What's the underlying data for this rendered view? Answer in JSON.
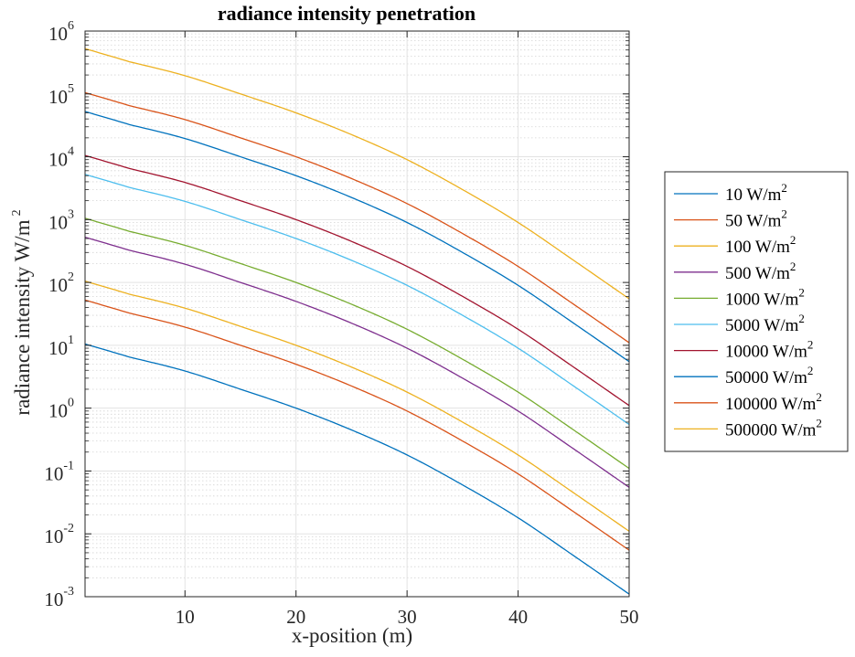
{
  "chart_data": {
    "type": "line",
    "title": "radiance intensity penetration",
    "xlabel": "x-position (m)",
    "ylabel": "radiance intensity W/m",
    "ylabel_sup": "2",
    "xlim": [
      1,
      50
    ],
    "ylim": [
      0.001,
      1000000
    ],
    "yscale": "log",
    "grid": true,
    "minor_grid": true,
    "legend_position": "outside-right",
    "x_ticks": [
      10,
      20,
      30,
      40,
      50
    ],
    "y_ticks": [
      {
        "value": 0.001,
        "base": "10",
        "exp": "-3"
      },
      {
        "value": 0.01,
        "base": "10",
        "exp": "-2"
      },
      {
        "value": 0.1,
        "base": "10",
        "exp": "-1"
      },
      {
        "value": 1,
        "base": "10",
        "exp": "0"
      },
      {
        "value": 10,
        "base": "10",
        "exp": "1"
      },
      {
        "value": 100,
        "base": "10",
        "exp": "2"
      },
      {
        "value": 1000,
        "base": "10",
        "exp": "3"
      },
      {
        "value": 10000,
        "base": "10",
        "exp": "4"
      },
      {
        "value": 100000,
        "base": "10",
        "exp": "5"
      },
      {
        "value": 1000000,
        "base": "10",
        "exp": "6"
      }
    ],
    "x": [
      1,
      5,
      10,
      15,
      20,
      25,
      30,
      35,
      40,
      45,
      50
    ],
    "series": [
      {
        "name": "10 W/m",
        "name_sup": "2",
        "color": "#0072BD",
        "values": [
          10.5,
          6.5,
          3.9,
          2.0,
          1.0,
          0.45,
          0.18,
          0.06,
          0.018,
          0.0045,
          0.0011
        ]
      },
      {
        "name": "50 W/m",
        "name_sup": "2",
        "color": "#D95319",
        "values": [
          52.5,
          32.5,
          19.5,
          10.0,
          5.0,
          2.25,
          0.9,
          0.3,
          0.09,
          0.0225,
          0.0055
        ]
      },
      {
        "name": "100 W/m",
        "name_sup": "2",
        "color": "#EDB120",
        "values": [
          105,
          65,
          39,
          20,
          10,
          4.5,
          1.8,
          0.6,
          0.18,
          0.045,
          0.011
        ]
      },
      {
        "name": "500 W/m",
        "name_sup": "2",
        "color": "#7E2F8E",
        "values": [
          525,
          325,
          195,
          100,
          50,
          22.5,
          9,
          3,
          0.9,
          0.225,
          0.055
        ]
      },
      {
        "name": "1000 W/m",
        "name_sup": "2",
        "color": "#77AC30",
        "values": [
          1050,
          650,
          390,
          200,
          100,
          45,
          18,
          6,
          1.8,
          0.45,
          0.11
        ]
      },
      {
        "name": "5000 W/m",
        "name_sup": "2",
        "color": "#4DBEEE",
        "values": [
          5250,
          3250,
          1950,
          1000,
          500,
          225,
          90,
          30,
          9,
          2.25,
          0.55
        ]
      },
      {
        "name": "10000 W/m",
        "name_sup": "2",
        "color": "#A2142F",
        "values": [
          10500,
          6500,
          3900,
          2000,
          1000,
          450,
          180,
          60,
          18,
          4.5,
          1.1
        ]
      },
      {
        "name": "50000 W/m",
        "name_sup": "2",
        "color": "#0072BD",
        "values": [
          52500,
          32500,
          19500,
          10000,
          5000,
          2250,
          900,
          300,
          90,
          22.5,
          5.5
        ]
      },
      {
        "name": "100000 W/m",
        "name_sup": "2",
        "color": "#D95319",
        "values": [
          105000,
          65000,
          39000,
          20000,
          10000,
          4500,
          1800,
          600,
          180,
          45,
          11
        ]
      },
      {
        "name": "500000 W/m",
        "name_sup": "2",
        "color": "#EDB120",
        "values": [
          525000,
          325000,
          195000,
          100000,
          50000,
          22500,
          9000,
          3000,
          900,
          225,
          55
        ]
      }
    ]
  }
}
